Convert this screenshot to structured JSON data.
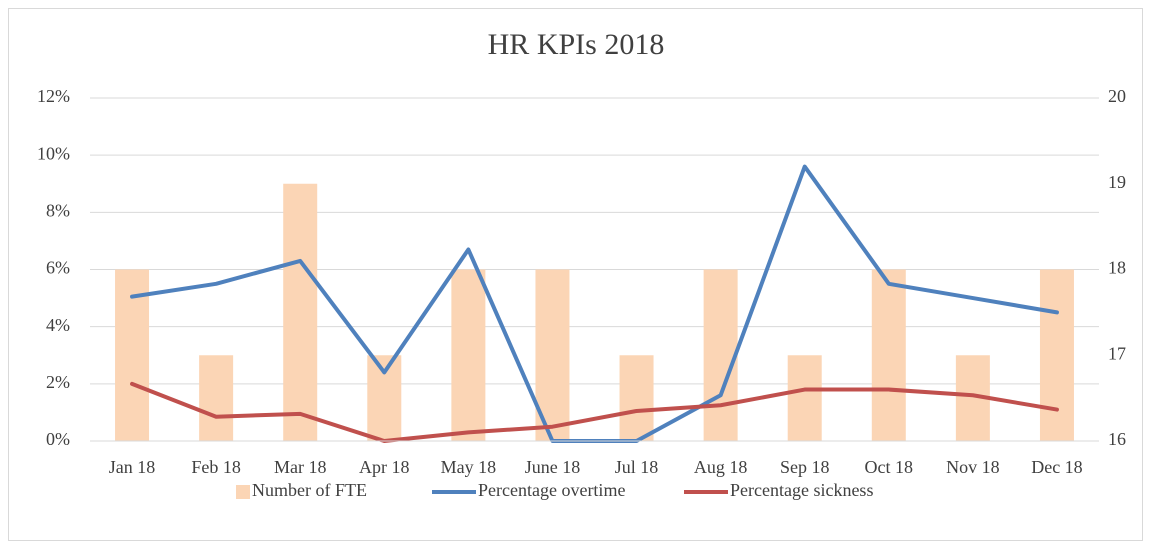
{
  "chart_data": {
    "type": "combo",
    "title": "HR KPIs 2018",
    "categories": [
      "Jan 18",
      "Feb 18",
      "Mar 18",
      "Apr 18",
      "May 18",
      "June 18",
      "Jul 18",
      "Aug 18",
      "Sep 18",
      "Oct 18",
      "Nov 18",
      "Dec 18"
    ],
    "series": [
      {
        "name": "Number of FTE",
        "type": "bar",
        "axis": "y2",
        "color": "#fbd5b5",
        "values": [
          18,
          17,
          19,
          17,
          18,
          18,
          17,
          18,
          17,
          18,
          17,
          18
        ]
      },
      {
        "name": "Percentage overtime",
        "type": "line",
        "color": "#4f81bd",
        "values": [
          5.05,
          5.5,
          6.3,
          2.4,
          6.7,
          0,
          0,
          1.6,
          9.6,
          5.5,
          5.0,
          4.5
        ]
      },
      {
        "name": "Percentage sickness",
        "type": "line",
        "color": "#c0504d",
        "values": [
          2.0,
          0.85,
          0.95,
          0,
          0.3,
          0.5,
          1.05,
          1.25,
          1.8,
          1.8,
          1.6,
          1.1
        ]
      }
    ],
    "ylim": [
      0,
      12
    ],
    "yticks": [
      {
        "value": 0,
        "label": "0%"
      },
      {
        "value": 2,
        "label": "2%"
      },
      {
        "value": 4,
        "label": "4%"
      },
      {
        "value": 6,
        "label": "6%"
      },
      {
        "value": 8,
        "label": "8%"
      },
      {
        "value": 10,
        "label": "10%"
      },
      {
        "value": 12,
        "label": "12%"
      }
    ],
    "y2lim": [
      16,
      20
    ],
    "y2ticks": [
      16,
      17,
      18,
      19,
      20
    ],
    "grid": true,
    "legend": "bottom"
  }
}
